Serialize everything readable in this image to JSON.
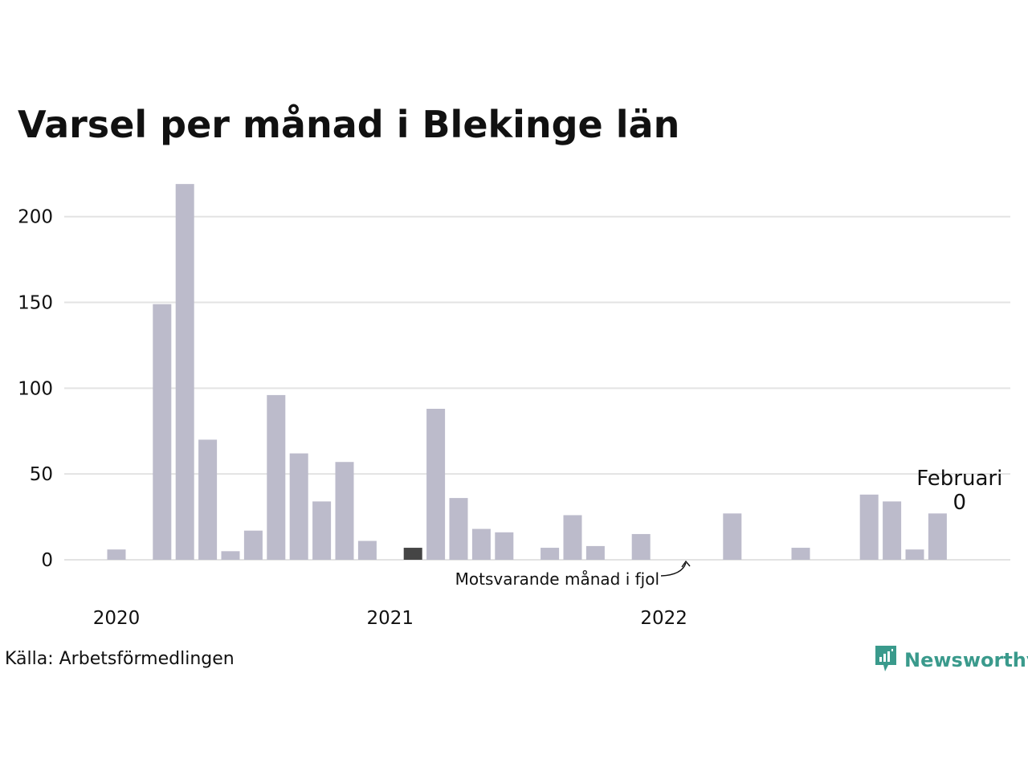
{
  "title": "Varsel per månad i Blekinge län",
  "source": "Källa: Arbetsförmedlingen",
  "brand": {
    "name": "Newsworthy",
    "icon": "newsworthy-logo-icon",
    "color": "#3a9a8c"
  },
  "colors": {
    "bar": "#bcbbcb",
    "highlight": "#454545",
    "grid": "#e3e3e3"
  },
  "annotation": {
    "text": "Motsvarande månad i fjol"
  },
  "last_label": {
    "month": "Februari",
    "value": "0"
  },
  "chart_data": {
    "type": "bar",
    "title": "Varsel per månad i Blekinge län",
    "xlabel": "",
    "ylabel": "",
    "ylim": [
      0,
      220
    ],
    "yticks": [
      0,
      50,
      100,
      150,
      200
    ],
    "xtick_labels": [
      {
        "label": "2020",
        "month": "2020-01"
      },
      {
        "label": "2021",
        "month": "2021-01"
      },
      {
        "label": "2022",
        "month": "2022-01"
      }
    ],
    "grid": true,
    "highlight_month": "2021-02",
    "months": [
      "2020-01",
      "2020-02",
      "2020-03",
      "2020-04",
      "2020-05",
      "2020-06",
      "2020-07",
      "2020-08",
      "2020-09",
      "2020-10",
      "2020-11",
      "2020-12",
      "2021-01",
      "2021-02",
      "2021-03",
      "2021-04",
      "2021-05",
      "2021-06",
      "2021-07",
      "2021-08",
      "2021-09",
      "2021-10",
      "2021-11",
      "2021-12",
      "2022-01",
      "2022-02",
      "2022-03",
      "2022-04",
      "2022-05",
      "2022-06",
      "2022-07",
      "2022-08",
      "2022-09",
      "2022-10",
      "2022-11",
      "2022-12",
      "2023-01",
      "2023-02"
    ],
    "values": [
      6,
      0,
      149,
      219,
      70,
      5,
      17,
      96,
      62,
      34,
      57,
      11,
      0,
      7,
      88,
      36,
      18,
      16,
      0,
      7,
      26,
      8,
      0,
      15,
      0,
      0,
      0,
      27,
      0,
      0,
      7,
      0,
      0,
      38,
      34,
      6,
      27,
      0
    ]
  }
}
